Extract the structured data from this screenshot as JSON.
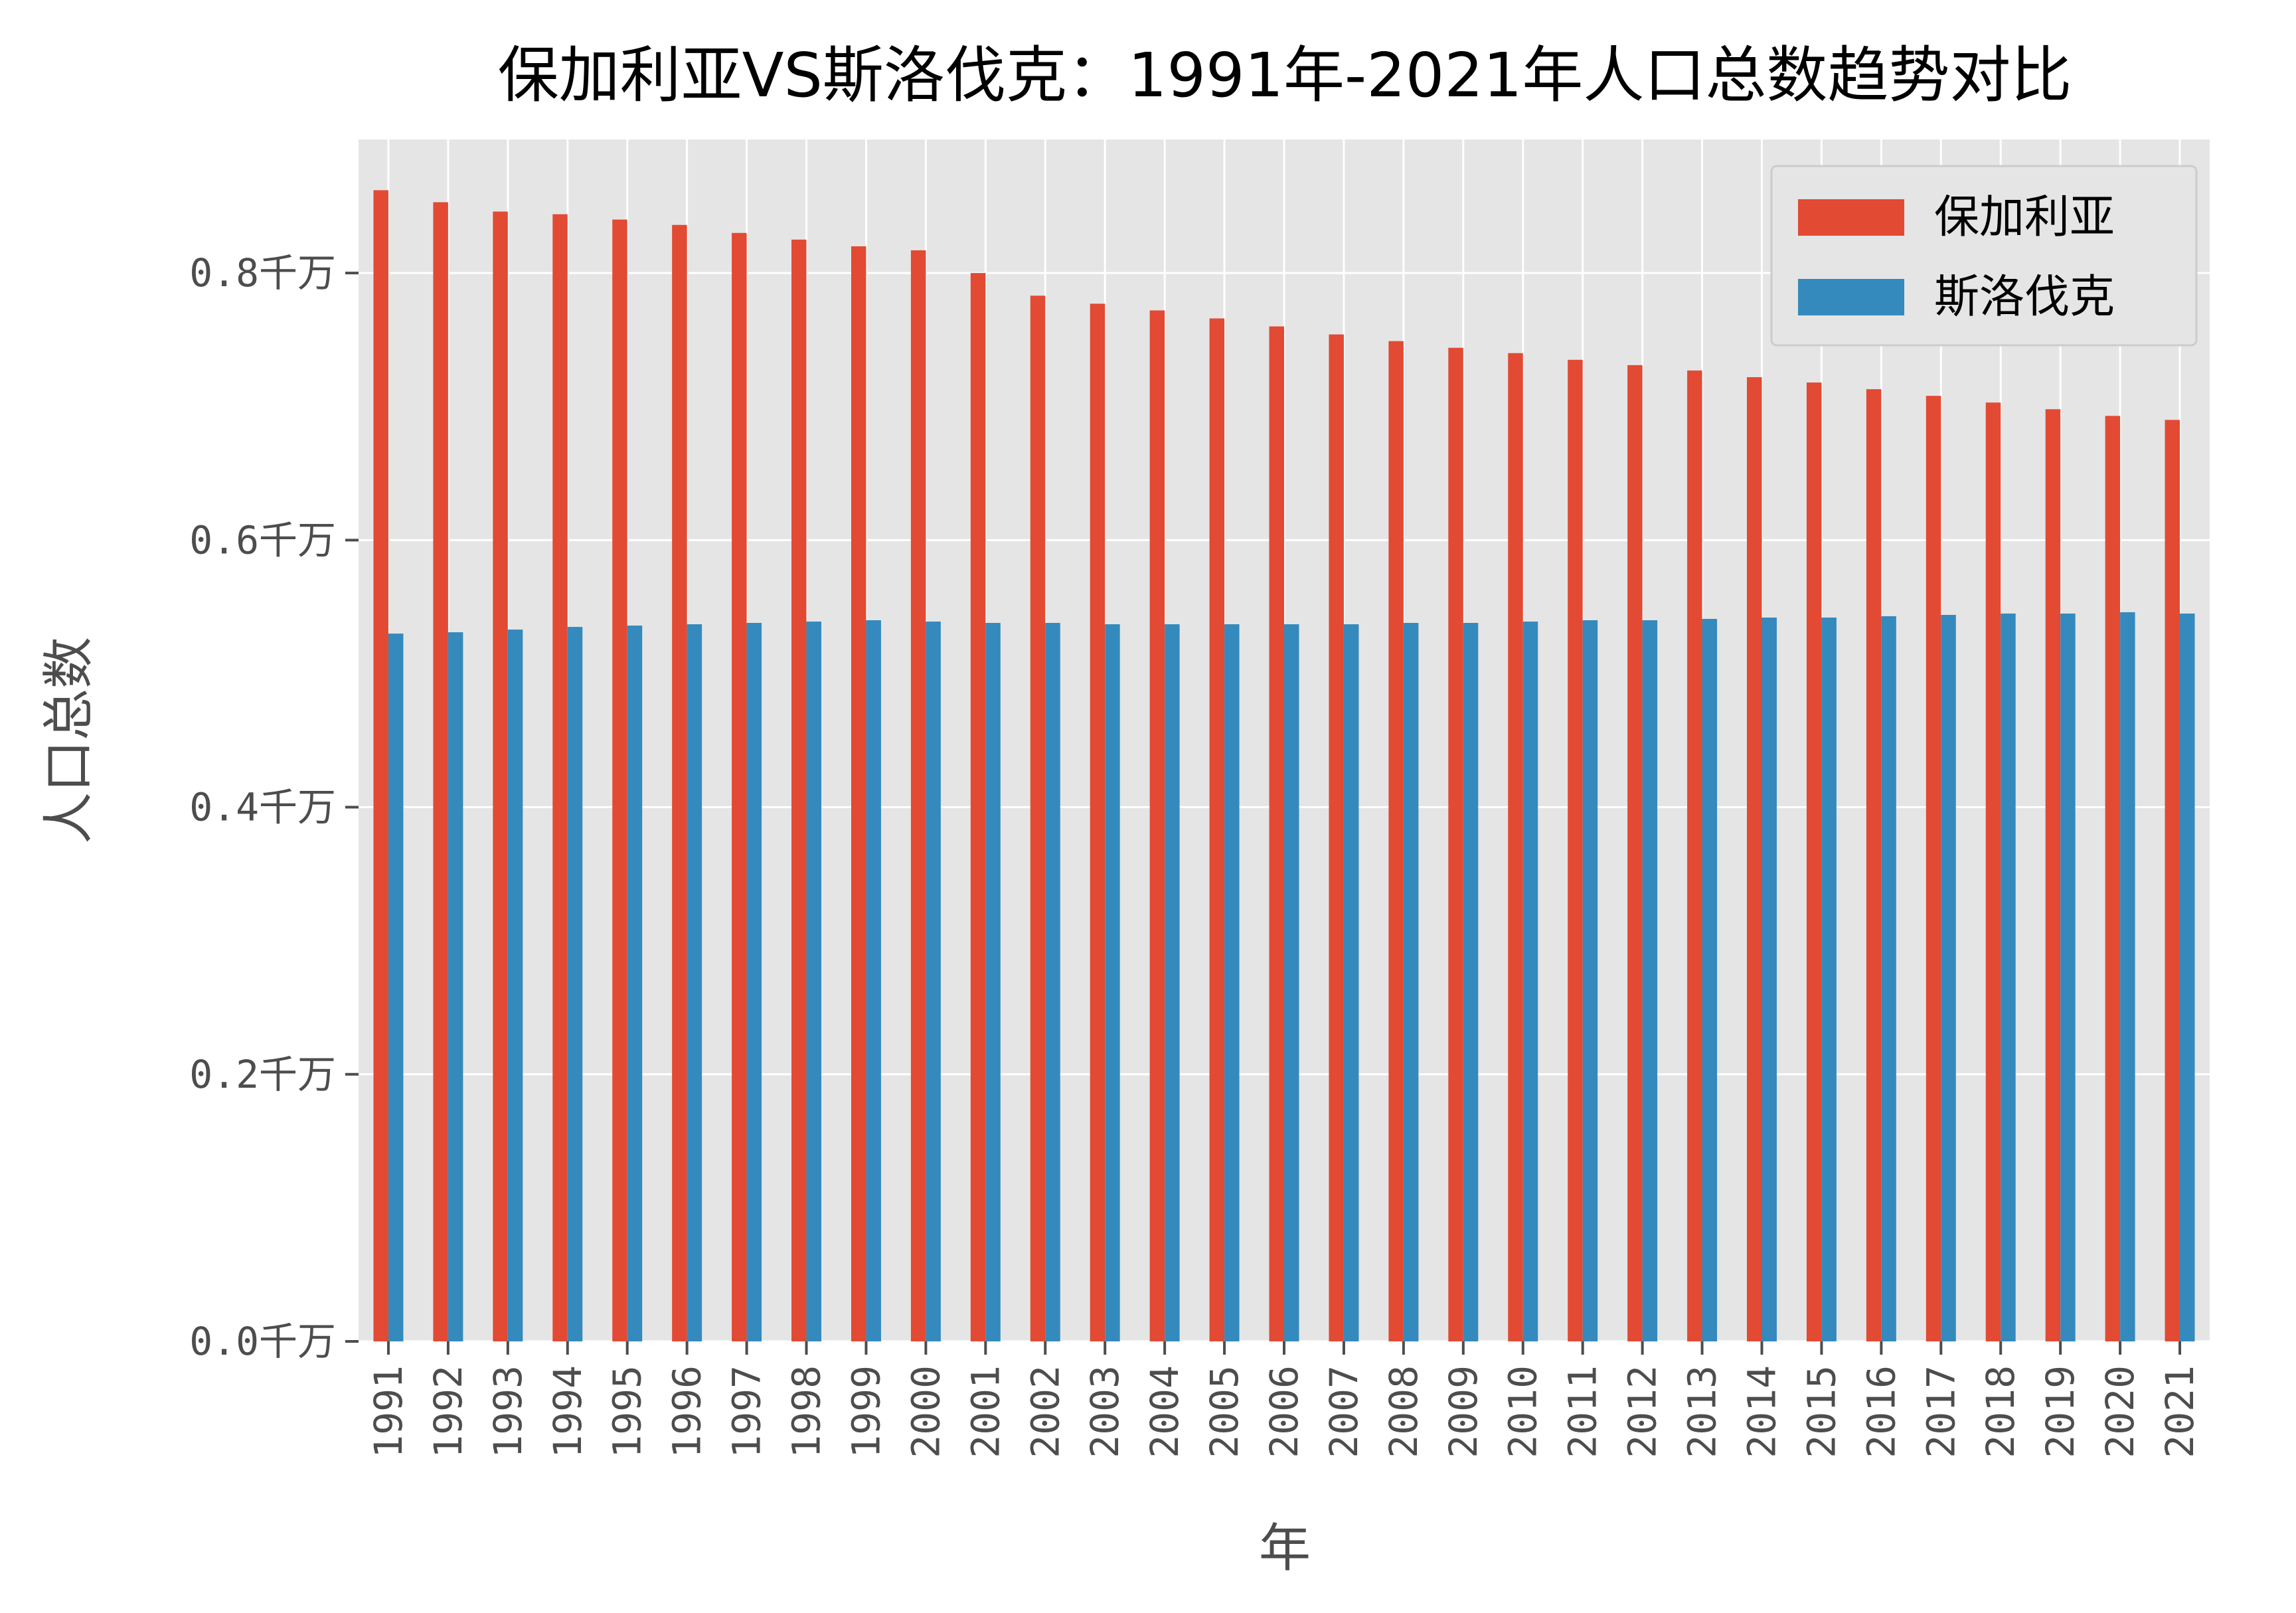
{
  "chart_data": {
    "type": "bar",
    "title": "保加利亚VS斯洛伐克：1991年-2021年人口总数趋势对比",
    "xlabel": "年",
    "ylabel": "人口总数",
    "ylim": [
      0,
      0.9
    ],
    "y_ticks": [
      0.0,
      0.2,
      0.4,
      0.6,
      0.8
    ],
    "y_tick_labels": [
      "0.0千万",
      "0.2千万",
      "0.4千万",
      "0.6千万",
      "0.8千万"
    ],
    "grid": true,
    "legend_position": "top-right",
    "categories": [
      "1991",
      "1992",
      "1993",
      "1994",
      "1995",
      "1996",
      "1997",
      "1998",
      "1999",
      "2000",
      "2001",
      "2002",
      "2003",
      "2004",
      "2005",
      "2006",
      "2007",
      "2008",
      "2009",
      "2010",
      "2011",
      "2012",
      "2013",
      "2014",
      "2015",
      "2016",
      "2017",
      "2018",
      "2019",
      "2020",
      "2021"
    ],
    "series": [
      {
        "name": "保加利亚",
        "color": "#e24a33",
        "values": [
          0.862,
          0.853,
          0.846,
          0.844,
          0.84,
          0.836,
          0.83,
          0.825,
          0.82,
          0.817,
          0.8,
          0.783,
          0.777,
          0.772,
          0.766,
          0.76,
          0.754,
          0.749,
          0.744,
          0.74,
          0.735,
          0.731,
          0.727,
          0.722,
          0.718,
          0.713,
          0.708,
          0.703,
          0.698,
          0.693,
          0.69
        ]
      },
      {
        "name": "斯洛伐克",
        "color": "#348abd",
        "values": [
          0.53,
          0.531,
          0.533,
          0.535,
          0.536,
          0.537,
          0.538,
          0.539,
          0.54,
          0.539,
          0.538,
          0.538,
          0.537,
          0.537,
          0.537,
          0.537,
          0.537,
          0.538,
          0.538,
          0.539,
          0.54,
          0.54,
          0.541,
          0.542,
          0.542,
          0.543,
          0.544,
          0.545,
          0.545,
          0.546,
          0.545
        ]
      }
    ]
  }
}
